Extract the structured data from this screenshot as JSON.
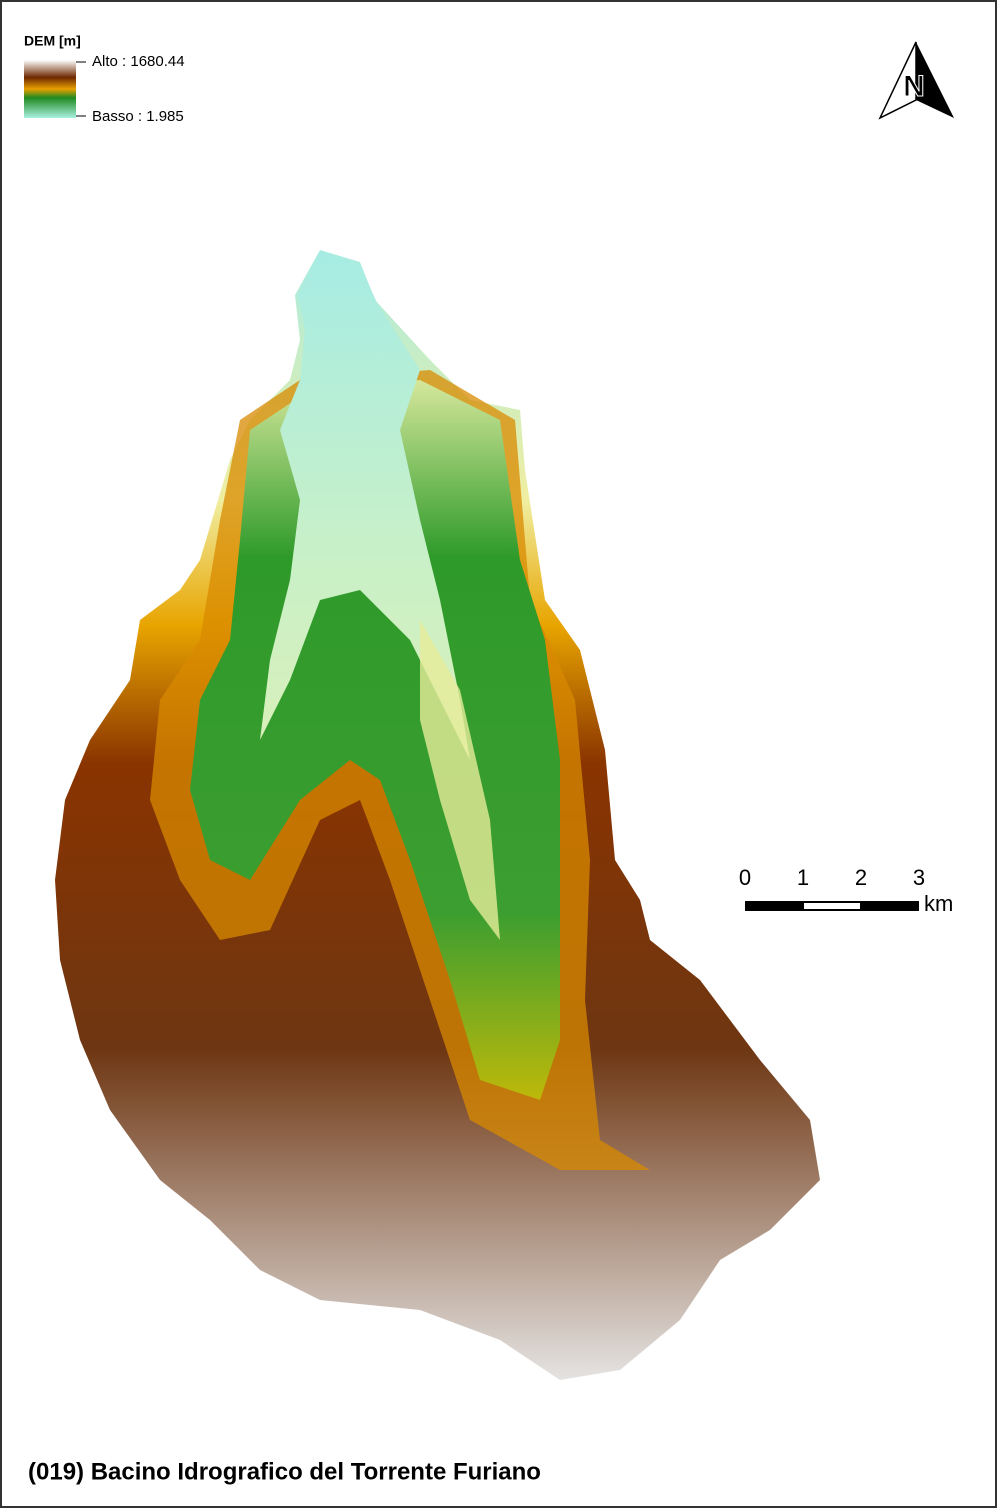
{
  "legend": {
    "title": "DEM [m]",
    "high": "Alto : 1680.44",
    "low": "Basso : 1.985"
  },
  "north_arrow": {
    "label": "N"
  },
  "scale_bar": {
    "ticks": [
      0,
      1,
      2,
      3
    ],
    "unit": "km"
  },
  "title": "(019) Bacino Idrografico del Torrente Furiano"
}
